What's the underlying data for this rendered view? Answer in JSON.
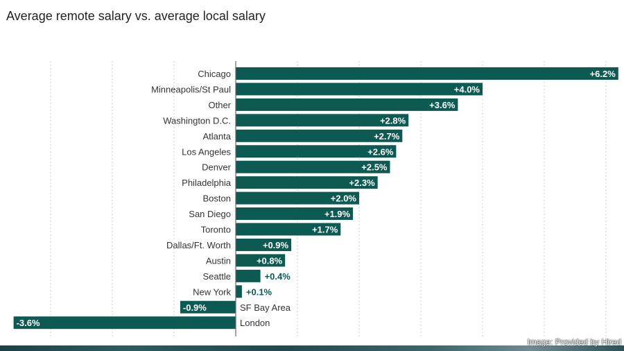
{
  "chart_data": {
    "type": "bar",
    "orientation": "horizontal",
    "title": "Average remote salary vs. average local salary",
    "categories": [
      "Chicago",
      "Minneapolis/St Paul",
      "Other",
      "Washington D.C.",
      "Atlanta",
      "Los Angeles",
      "Denver",
      "Philadelphia",
      "Boston",
      "San Diego",
      "Toronto",
      "Dallas/Ft. Worth",
      "Austin",
      "Seattle",
      "New York",
      "SF Bay Area",
      "London"
    ],
    "values": [
      6.2,
      4.0,
      3.6,
      2.8,
      2.7,
      2.6,
      2.5,
      2.3,
      2.0,
      1.9,
      1.7,
      0.9,
      0.8,
      0.4,
      0.1,
      -0.9,
      -3.6
    ],
    "labels": [
      "+6.2%",
      "+4.0%",
      "+3.6%",
      "+2.8%",
      "+2.7%",
      "+2.6%",
      "+2.5%",
      "+2.3%",
      "+2.0%",
      "+1.9%",
      "+1.7%",
      "+0.9%",
      "+0.8%",
      "+0.4%",
      "+0.1%",
      "-0.9%",
      "-3.6%"
    ],
    "unit": "%",
    "xlim": [
      -3.8,
      6.25
    ],
    "grid": "vertical dotted every 1%",
    "bar_color": "#0d5a52"
  },
  "credit": "Image: Provided by Hired"
}
